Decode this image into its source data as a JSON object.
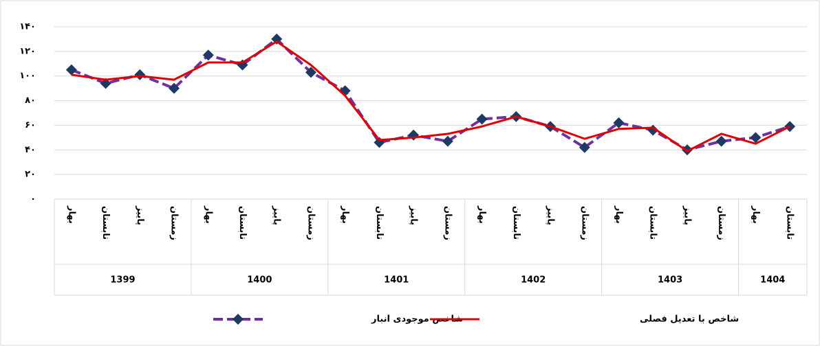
{
  "chart_data": {
    "type": "line",
    "groups": [
      {
        "name": "1399",
        "categories": [
          "بهار",
          "تابستان",
          "پاییز",
          "زمستان"
        ]
      },
      {
        "name": "1400",
        "categories": [
          "بهار",
          "تابستان",
          "پاییز",
          "زمستان"
        ]
      },
      {
        "name": "1401",
        "categories": [
          "بهار",
          "تابستان",
          "پاییز",
          "زمستان"
        ]
      },
      {
        "name": "1402",
        "categories": [
          "بهار",
          "تابستان",
          "پاییز",
          "زمستان"
        ]
      },
      {
        "name": "1403",
        "categories": [
          "بهار",
          "تابستان",
          "پاییز",
          "زمستان"
        ]
      },
      {
        "name": "1404",
        "categories": [
          "بهار",
          "تابستان"
        ]
      }
    ],
    "series": [
      {
        "name": "شاخص موجودی انبار",
        "color": "#7030a0",
        "marker_color": "#1f3864",
        "dashed": true,
        "values": [
          105,
          94,
          101,
          90,
          117,
          109,
          130,
          103,
          88,
          46,
          52,
          47,
          65,
          67,
          59,
          42,
          62,
          56,
          40,
          47,
          50,
          59
        ]
      },
      {
        "name": "شاخص با تعدیل فصلی",
        "color": "#e00000",
        "values": [
          101,
          97,
          100,
          97,
          111,
          111,
          128,
          109,
          84,
          48,
          50,
          53,
          59,
          67,
          59,
          49,
          57,
          58,
          39,
          53,
          45,
          59
        ]
      }
    ],
    "ylim": [
      0,
      140
    ],
    "yticks": [
      {
        "value": 0,
        "label": "۰"
      },
      {
        "value": 20,
        "label": "۲۰"
      },
      {
        "value": 40,
        "label": "۴۰"
      },
      {
        "value": 60,
        "label": "۶۰"
      },
      {
        "value": 80,
        "label": "۸۰"
      },
      {
        "value": 100,
        "label": "۱۰۰"
      },
      {
        "value": 120,
        "label": "۱۲۰"
      },
      {
        "value": 140,
        "label": "۱۴۰"
      }
    ],
    "grid": true
  }
}
